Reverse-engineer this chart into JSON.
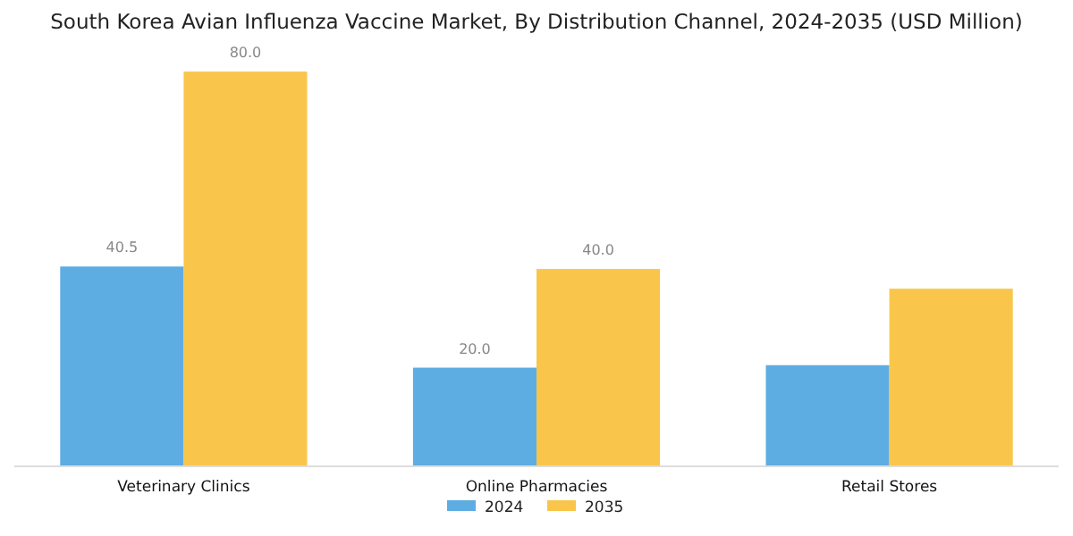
{
  "chart_data": {
    "type": "bar",
    "title": "South Korea Avian Influenza Vaccine Market, By Distribution Channel, 2024-2035 (USD Million)",
    "categories": [
      "Veterinary Clinics",
      "Online Pharmacies",
      "Retail Stores"
    ],
    "series": [
      {
        "name": "2024",
        "color": "#5dade2",
        "values": [
          40.5,
          20.0,
          20.5
        ],
        "value_labels": [
          "40.5",
          "20.0",
          null
        ]
      },
      {
        "name": "2035",
        "color": "#f9c54b",
        "values": [
          80.0,
          40.0,
          36.0
        ],
        "value_labels": [
          "80.0",
          "40.0",
          null
        ]
      }
    ],
    "legend": "bottom"
  }
}
